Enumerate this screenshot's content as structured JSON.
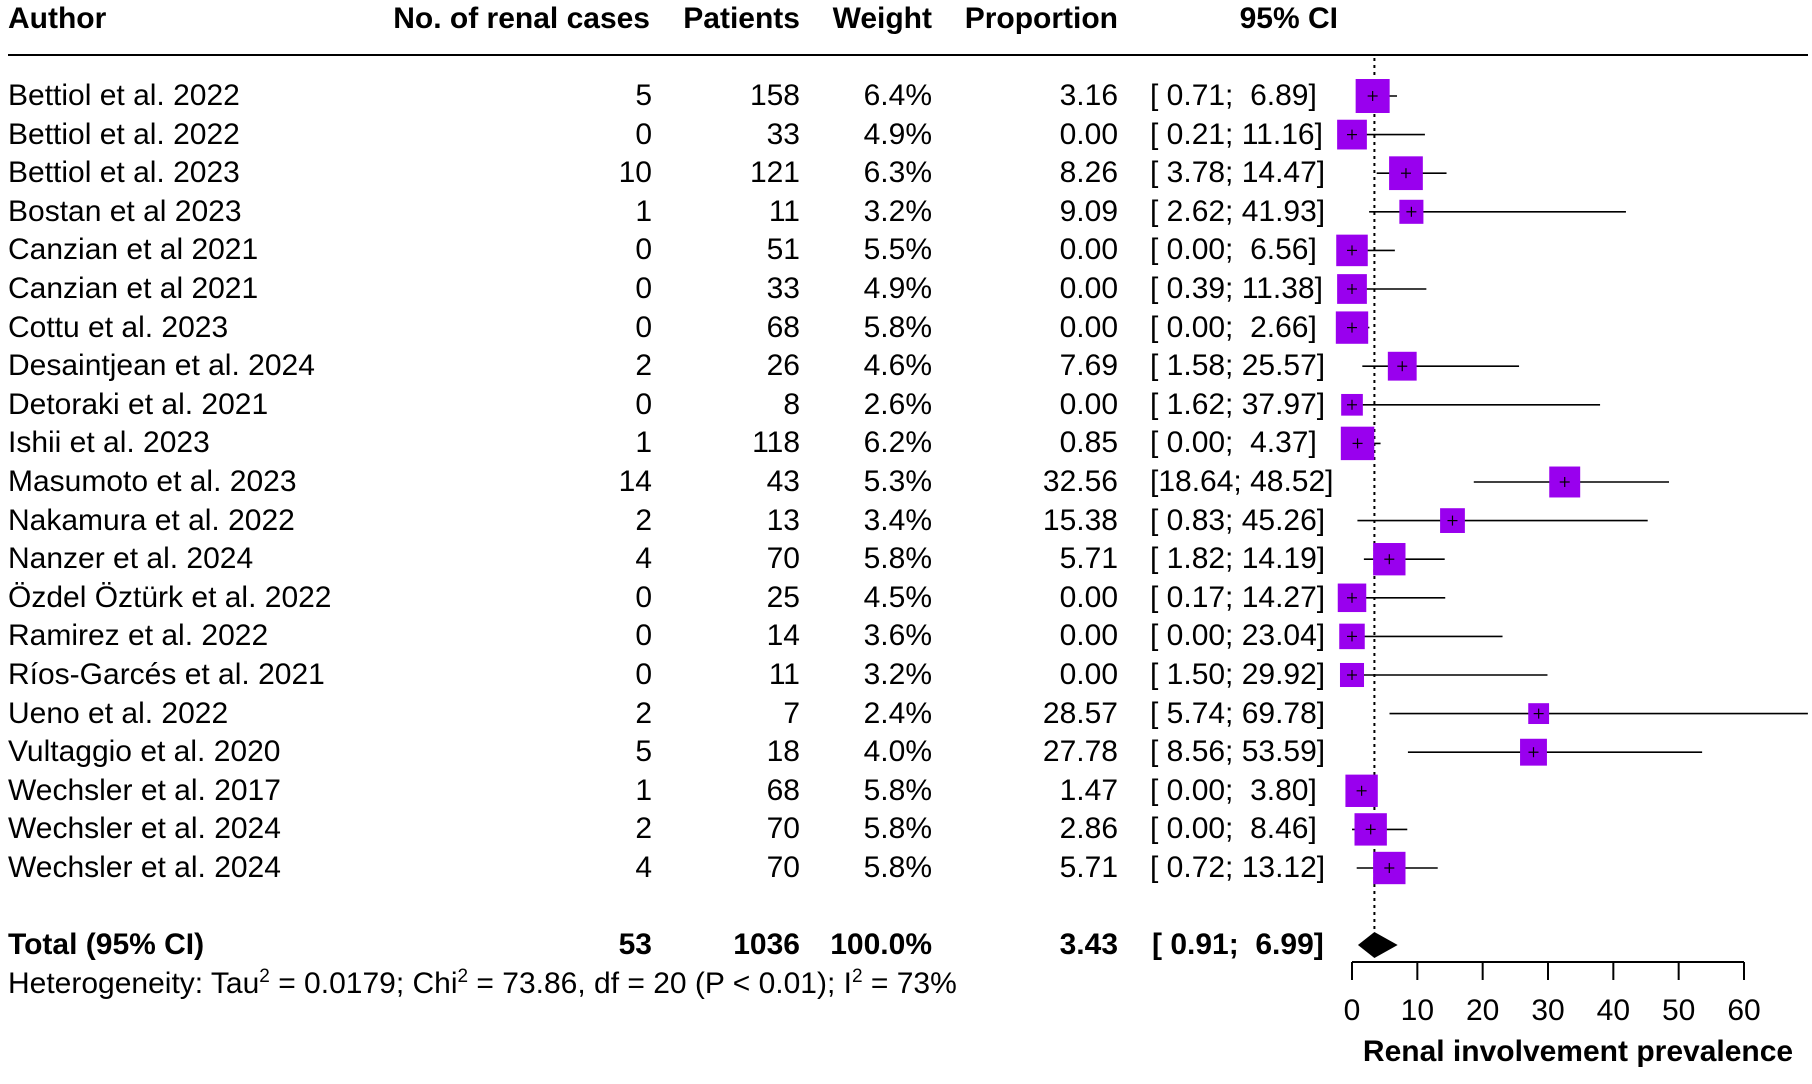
{
  "headers": {
    "author": "Author",
    "cases": "No. of renal cases",
    "patients": "Patients",
    "weight": "Weight",
    "proportion": "Proportion",
    "ci": "95% CI"
  },
  "colors": {
    "box": "#9900EE",
    "diamond": "#000000",
    "line": "#000000"
  },
  "total": {
    "label": "Total (95% CI)",
    "cases": "53",
    "patients": "1036",
    "weight": "100.0%",
    "proportion": "3.43",
    "ci": "[ 0.91;  6.99]"
  },
  "heterogeneity": {
    "prefix": "Heterogeneity: Tau",
    "tau2": "= 0.0179; Chi",
    "chi2": "= 73.86, df = 20 (P < 0.01); I",
    "i2": "= 73%",
    "sup": "2"
  },
  "chart_data": {
    "type": "forest",
    "title": "",
    "xlabel": "Renal involvement prevalence",
    "xlim": [
      0,
      60
    ],
    "xticks": [
      0,
      10,
      20,
      30,
      40,
      50,
      60
    ],
    "reference_line": 3.43,
    "studies": [
      {
        "author": "Bettiol et al. 2022",
        "cases": "5",
        "patients": "158",
        "weight": "6.4%",
        "proportion": 3.16,
        "ci_text": "[ 0.71;  6.89]",
        "lower": 0.71,
        "upper": 6.89
      },
      {
        "author": "Bettiol et al. 2022",
        "cases": "0",
        "patients": "33",
        "weight": "4.9%",
        "proportion": 0.0,
        "ci_text": "[ 0.21; 11.16]",
        "lower": 0.21,
        "upper": 11.16
      },
      {
        "author": "Bettiol et al. 2023",
        "cases": "10",
        "patients": "121",
        "weight": "6.3%",
        "proportion": 8.26,
        "ci_text": "[ 3.78; 14.47]",
        "lower": 3.78,
        "upper": 14.47
      },
      {
        "author": "Bostan et al 2023",
        "cases": "1",
        "patients": "11",
        "weight": "3.2%",
        "proportion": 9.09,
        "ci_text": "[ 2.62; 41.93]",
        "lower": 2.62,
        "upper": 41.93
      },
      {
        "author": "Canzian et al 2021",
        "cases": "0",
        "patients": "51",
        "weight": "5.5%",
        "proportion": 0.0,
        "ci_text": "[ 0.00;  6.56]",
        "lower": 0.0,
        "upper": 6.56
      },
      {
        "author": "Canzian et al 2021",
        "cases": "0",
        "patients": "33",
        "weight": "4.9%",
        "proportion": 0.0,
        "ci_text": "[ 0.39; 11.38]",
        "lower": 0.39,
        "upper": 11.38
      },
      {
        "author": "Cottu et al. 2023",
        "cases": "0",
        "patients": "68",
        "weight": "5.8%",
        "proportion": 0.0,
        "ci_text": "[ 0.00;  2.66]",
        "lower": 0.0,
        "upper": 2.66
      },
      {
        "author": "Desaintjean et al. 2024",
        "cases": "2",
        "patients": "26",
        "weight": "4.6%",
        "proportion": 7.69,
        "ci_text": "[ 1.58; 25.57]",
        "lower": 1.58,
        "upper": 25.57
      },
      {
        "author": "Detoraki et al. 2021",
        "cases": "0",
        "patients": "8",
        "weight": "2.6%",
        "proportion": 0.0,
        "ci_text": "[ 1.62; 37.97]",
        "lower": 1.62,
        "upper": 37.97
      },
      {
        "author": "Ishii et al. 2023",
        "cases": "1",
        "patients": "118",
        "weight": "6.2%",
        "proportion": 0.85,
        "ci_text": "[ 0.00;  4.37]",
        "lower": 0.0,
        "upper": 4.37
      },
      {
        "author": "Masumoto et al. 2023",
        "cases": "14",
        "patients": "43",
        "weight": "5.3%",
        "proportion": 32.56,
        "ci_text": "[18.64; 48.52]",
        "lower": 18.64,
        "upper": 48.52
      },
      {
        "author": "Nakamura et al. 2022",
        "cases": "2",
        "patients": "13",
        "weight": "3.4%",
        "proportion": 15.38,
        "ci_text": "[ 0.83; 45.26]",
        "lower": 0.83,
        "upper": 45.26
      },
      {
        "author": "Nanzer et al. 2024",
        "cases": "4",
        "patients": "70",
        "weight": "5.8%",
        "proportion": 5.71,
        "ci_text": "[ 1.82; 14.19]",
        "lower": 1.82,
        "upper": 14.19
      },
      {
        "author": "Özdel Öztürk et al. 2022",
        "cases": "0",
        "patients": "25",
        "weight": "4.5%",
        "proportion": 0.0,
        "ci_text": "[ 0.17; 14.27]",
        "lower": 0.17,
        "upper": 14.27
      },
      {
        "author": "Ramirez et al. 2022",
        "cases": "0",
        "patients": "14",
        "weight": "3.6%",
        "proportion": 0.0,
        "ci_text": "[ 0.00; 23.04]",
        "lower": 0.0,
        "upper": 23.04
      },
      {
        "author": "Ríos-Garcés et al. 2021",
        "cases": "0",
        "patients": "11",
        "weight": "3.2%",
        "proportion": 0.0,
        "ci_text": "[ 1.50; 29.92]",
        "lower": 1.5,
        "upper": 29.92
      },
      {
        "author": "Ueno et al. 2022",
        "cases": "2",
        "patients": "7",
        "weight": "2.4%",
        "proportion": 28.57,
        "ci_text": "[ 5.74; 69.78]",
        "lower": 5.74,
        "upper": 69.78
      },
      {
        "author": "Vultaggio et al. 2020",
        "cases": "5",
        "patients": "18",
        "weight": "4.0%",
        "proportion": 27.78,
        "ci_text": "[ 8.56; 53.59]",
        "lower": 8.56,
        "upper": 53.59
      },
      {
        "author": "Wechsler et al. 2017",
        "cases": "1",
        "patients": "68",
        "weight": "5.8%",
        "proportion": 1.47,
        "ci_text": "[ 0.00;  3.80]",
        "lower": 0.0,
        "upper": 3.8
      },
      {
        "author": "Wechsler et al. 2024",
        "cases": "2",
        "patients": "70",
        "weight": "5.8%",
        "proportion": 2.86,
        "ci_text": "[ 0.00;  8.46]",
        "lower": 0.0,
        "upper": 8.46
      },
      {
        "author": "Wechsler et al. 2024",
        "cases": "4",
        "patients": "70",
        "weight": "5.8%",
        "proportion": 5.71,
        "ci_text": "[ 0.72; 13.12]",
        "lower": 0.72,
        "upper": 13.12
      }
    ],
    "summary": {
      "estimate": 3.43,
      "lower": 0.91,
      "upper": 6.99
    }
  }
}
